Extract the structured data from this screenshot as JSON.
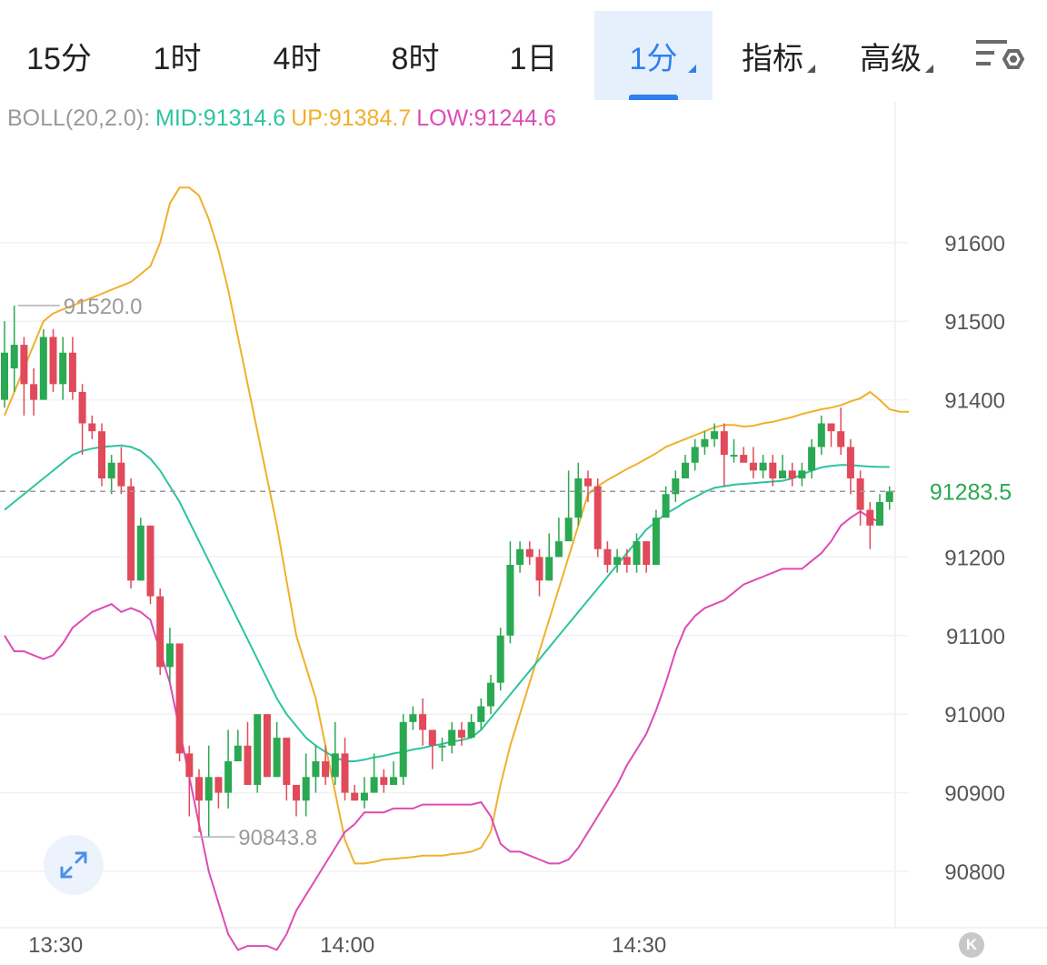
{
  "tabs": [
    {
      "label": "15分",
      "active": false,
      "dropdown": false
    },
    {
      "label": "1时",
      "active": false,
      "dropdown": false
    },
    {
      "label": "4时",
      "active": false,
      "dropdown": false
    },
    {
      "label": "8时",
      "active": false,
      "dropdown": false
    },
    {
      "label": "1日",
      "active": false,
      "dropdown": false
    },
    {
      "label": "1分",
      "active": true,
      "dropdown": true
    },
    {
      "label": "指标",
      "active": false,
      "dropdown": true
    },
    {
      "label": "高级",
      "active": false,
      "dropdown": true
    }
  ],
  "icons": {
    "settings": "chart-settings-icon",
    "expand": "expand-icon",
    "kline": "k-icon"
  },
  "kline_button": "K",
  "legend": {
    "boll": "BOLL(20,2.0):",
    "mid": "MID:91314.6",
    "up": "UP:91384.7",
    "low": "LOW:91244.6"
  },
  "colors": {
    "up_candle": "#2aa852",
    "down_candle": "#e04a5a",
    "mid": "#2bc4a0",
    "upper": "#f0b02a",
    "lower": "#dd4bb5",
    "legend_label": "#9a9a9a",
    "price_tag": "#2aa852",
    "active_tab": "#2f7ff0"
  },
  "chart_data": {
    "type": "candlestick",
    "indicator": "BOLL(20,2.0)",
    "ylim": [
      90760,
      91760
    ],
    "y_ticks": [
      91600,
      91500,
      91400,
      91200,
      91100,
      91000,
      90900,
      90800
    ],
    "y_tick_labels": [
      "91600",
      "91500",
      "91400",
      "91200",
      "91100",
      "91000",
      "90900",
      "90800"
    ],
    "x_tick_labels": [
      "13:30",
      "14:00",
      "14:30"
    ],
    "x_tick_index": [
      6,
      36,
      66
    ],
    "current_price": 91283.5,
    "current_price_label": "91283.5",
    "high_marker": {
      "label": "91520.0",
      "value": 91520.0,
      "index": 1
    },
    "low_marker": {
      "label": "90843.8",
      "value": 90843.8,
      "index": 19
    },
    "candles": [
      [
        91400,
        91460,
        91500,
        91390
      ],
      [
        91440,
        91470,
        91520,
        91410
      ],
      [
        91470,
        91420,
        91480,
        91380
      ],
      [
        91420,
        91400,
        91440,
        91380
      ],
      [
        91400,
        91480,
        91490,
        91400
      ],
      [
        91480,
        91420,
        91490,
        91410
      ],
      [
        91420,
        91460,
        91480,
        91400
      ],
      [
        91460,
        91410,
        91480,
        91400
      ],
      [
        91410,
        91370,
        91420,
        91330
      ],
      [
        91370,
        91360,
        91380,
        91350
      ],
      [
        91360,
        91300,
        91370,
        91290
      ],
      [
        91300,
        91320,
        91330,
        91280
      ],
      [
        91320,
        91290,
        91340,
        91280
      ],
      [
        91290,
        91170,
        91300,
        91160
      ],
      [
        91170,
        91240,
        91250,
        91170
      ],
      [
        91240,
        91150,
        91240,
        91140
      ],
      [
        91150,
        91060,
        91160,
        91050
      ],
      [
        91060,
        91090,
        91110,
        91040
      ],
      [
        91090,
        90950,
        91090,
        90940
      ],
      [
        90950,
        90920,
        90960,
        90870
      ],
      [
        90920,
        90890,
        90930,
        90850
      ],
      [
        90890,
        90920,
        90960,
        90843.8
      ],
      [
        90920,
        90900,
        90920,
        90880
      ],
      [
        90900,
        90940,
        90980,
        90880
      ],
      [
        90940,
        90960,
        90980,
        90940
      ],
      [
        90960,
        90910,
        90990,
        90910
      ],
      [
        90910,
        91000,
        91000,
        90900
      ],
      [
        91000,
        90920,
        91000,
        90920
      ],
      [
        90920,
        90970,
        90990,
        90920
      ],
      [
        90970,
        90910,
        90970,
        90890
      ],
      [
        90910,
        90890,
        90910,
        90870
      ],
      [
        90890,
        90920,
        90950,
        90870
      ],
      [
        90920,
        90940,
        90960,
        90900
      ],
      [
        90940,
        90920,
        90960,
        90910
      ],
      [
        90920,
        90950,
        90990,
        90910
      ],
      [
        90950,
        90900,
        90970,
        90890
      ],
      [
        90900,
        90890,
        90910,
        90890
      ],
      [
        90890,
        90900,
        90920,
        90880
      ],
      [
        90900,
        90920,
        90950,
        90900
      ],
      [
        90920,
        90910,
        90930,
        90900
      ],
      [
        90910,
        90920,
        90940,
        90910
      ],
      [
        90920,
        90990,
        91000,
        90910
      ],
      [
        90990,
        91000,
        91010,
        90980
      ],
      [
        91000,
        90980,
        91020,
        90960
      ],
      [
        90980,
        90960,
        90980,
        90930
      ],
      [
        90960,
        90960,
        90970,
        90940
      ],
      [
        90960,
        90980,
        90990,
        90950
      ],
      [
        90980,
        90970,
        90990,
        90960
      ],
      [
        90970,
        90990,
        91000,
        90970
      ],
      [
        90990,
        91010,
        91020,
        90980
      ],
      [
        91010,
        91040,
        91050,
        91000
      ],
      [
        91040,
        91100,
        91110,
        91030
      ],
      [
        91100,
        91190,
        91220,
        91090
      ],
      [
        91190,
        91210,
        91220,
        91180
      ],
      [
        91210,
        91200,
        91220,
        91190
      ],
      [
        91200,
        91170,
        91210,
        91150
      ],
      [
        91170,
        91200,
        91230,
        91170
      ],
      [
        91200,
        91220,
        91250,
        91210
      ],
      [
        91220,
        91250,
        91310,
        91240
      ],
      [
        91250,
        91300,
        91320,
        91240
      ],
      [
        91300,
        91290,
        91310,
        91270
      ],
      [
        91290,
        91210,
        91300,
        91200
      ],
      [
        91210,
        91190,
        91220,
        91180
      ],
      [
        91190,
        91200,
        91210,
        91180
      ],
      [
        91200,
        91190,
        91210,
        91180
      ],
      [
        91190,
        91220,
        91230,
        91180
      ],
      [
        91220,
        91190,
        91220,
        91180
      ],
      [
        91190,
        91250,
        91260,
        91190
      ],
      [
        91250,
        91280,
        91290,
        91250
      ],
      [
        91280,
        91300,
        91310,
        91270
      ],
      [
        91300,
        91320,
        91330,
        91300
      ],
      [
        91320,
        91340,
        91350,
        91310
      ],
      [
        91340,
        91350,
        91360,
        91330
      ],
      [
        91350,
        91360,
        91370,
        91340
      ],
      [
        91360,
        91330,
        91370,
        91290
      ],
      [
        91330,
        91330,
        91350,
        91320
      ],
      [
        91330,
        91320,
        91340,
        91320
      ],
      [
        91320,
        91310,
        91340,
        91300
      ],
      [
        91310,
        91320,
        91330,
        91300
      ],
      [
        91320,
        91300,
        91330,
        91290
      ],
      [
        91300,
        91310,
        91330,
        91300
      ],
      [
        91310,
        91300,
        91320,
        91290
      ],
      [
        91300,
        91310,
        91320,
        91290
      ],
      [
        91310,
        91340,
        91350,
        91300
      ],
      [
        91340,
        91370,
        91380,
        91330
      ],
      [
        91370,
        91360,
        91370,
        91340
      ],
      [
        91360,
        91340,
        91390,
        91330
      ],
      [
        91340,
        91300,
        91350,
        91280
      ],
      [
        91300,
        91260,
        91310,
        91240
      ],
      [
        91260,
        91240,
        91270,
        91210
      ],
      [
        91240,
        91270,
        91280,
        91240
      ],
      [
        91270,
        91283.5,
        91290,
        91260
      ]
    ],
    "boll_mid": [
      91260,
      91270,
      91280,
      91290,
      91300,
      91310,
      91320,
      91330,
      91335,
      91338,
      91340,
      91341,
      91342,
      91340,
      91335,
      91325,
      91310,
      91290,
      91270,
      91245,
      91220,
      91195,
      91170,
      91145,
      91120,
      91095,
      91070,
      91045,
      91020,
      91000,
      90985,
      90970,
      90960,
      90952,
      90945,
      90940,
      90940,
      90942,
      90945,
      90947,
      90950,
      90952,
      90955,
      90957,
      90960,
      90962,
      90965,
      90967,
      90970,
      90980,
      90995,
      91010,
      91025,
      91040,
      91055,
      91070,
      91085,
      91100,
      91115,
      91130,
      91145,
      91160,
      91175,
      91190,
      91205,
      91220,
      91235,
      91245,
      91255,
      91262,
      91270,
      91276,
      91283,
      91288,
      91290,
      91292,
      91293,
      91294,
      91295,
      91296,
      91297,
      91300,
      91305,
      91310,
      91314,
      91316,
      91317,
      91317,
      91316,
      91315,
      91314.6,
      91314.6
    ],
    "boll_upper": [
      91380,
      91410,
      91440,
      91470,
      91500,
      91510,
      91515,
      91520,
      91525,
      91530,
      91535,
      91540,
      91545,
      91550,
      91560,
      91570,
      91600,
      91650,
      91670,
      91670,
      91660,
      91630,
      91590,
      91540,
      91480,
      91420,
      91360,
      91300,
      91240,
      91170,
      91100,
      91060,
      91020,
      90960,
      90900,
      90840,
      90810,
      90810,
      90812,
      90815,
      90816,
      90817,
      90818,
      90820,
      90820,
      90820,
      90822,
      90823,
      90825,
      90830,
      90850,
      90910,
      90960,
      91000,
      91040,
      91080,
      91120,
      91160,
      91200,
      91240,
      91280,
      91290,
      91298,
      91305,
      91312,
      91318,
      91325,
      91332,
      91340,
      91345,
      91350,
      91355,
      91360,
      91365,
      91368,
      91368,
      91366,
      91367,
      91370,
      91372,
      91375,
      91378,
      91382,
      91385,
      91388,
      91390,
      91393,
      91398,
      91402,
      91410,
      91400,
      91388,
      91385,
      91384.7
    ],
    "boll_lower": [
      91100,
      91080,
      91080,
      91075,
      91070,
      91075,
      91090,
      91110,
      91120,
      91130,
      91135,
      91140,
      91130,
      91135,
      91130,
      91120,
      91080,
      91040,
      90980,
      90920,
      90860,
      90800,
      90760,
      90720,
      90700,
      90705,
      90705,
      90705,
      90700,
      90720,
      90750,
      90770,
      90790,
      90810,
      90830,
      90850,
      90860,
      90875,
      90875,
      90875,
      90880,
      90880,
      90880,
      90885,
      90885,
      90885,
      90885,
      90885,
      90885,
      90888,
      90870,
      90835,
      90825,
      90825,
      90820,
      90815,
      90810,
      90810,
      90815,
      90830,
      90850,
      90870,
      90890,
      90910,
      90935,
      90955,
      90975,
      91005,
      91040,
      91080,
      91110,
      91125,
      91135,
      91140,
      91145,
      91155,
      91165,
      91170,
      91175,
      91180,
      91185,
      91185,
      91185,
      91195,
      91205,
      91220,
      91240,
      91250,
      91258,
      91250,
      91244.6
    ]
  }
}
